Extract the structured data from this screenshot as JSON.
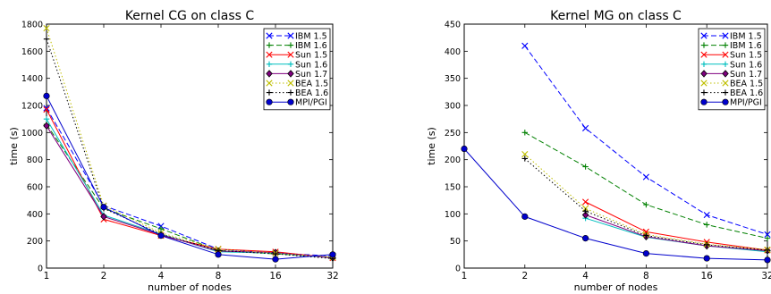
{
  "chart_data": [
    {
      "type": "line",
      "title": "Kernel CG on class C",
      "xlabel": "number of nodes",
      "ylabel": "time (s)",
      "x_scale": "log2",
      "x": [
        1,
        2,
        4,
        8,
        16,
        32
      ],
      "x_tick_labels": [
        "1",
        "2",
        "4",
        "8",
        "16",
        "32"
      ],
      "ylim": [
        0,
        1800
      ],
      "y_ticks": [
        0,
        200,
        400,
        600,
        800,
        1000,
        1200,
        1400,
        1600,
        1800
      ],
      "legend_position": "top-right",
      "series": [
        {
          "name": "IBM 1.5",
          "color": "#0000ff",
          "dash": "dashed",
          "marker": "x",
          "values": [
            1180,
            460,
            310,
            140,
            110,
            90
          ]
        },
        {
          "name": "IBM 1.6",
          "color": "#008000",
          "dash": "dashed",
          "marker": "+",
          "values": [
            1060,
            440,
            290,
            130,
            105,
            80
          ]
        },
        {
          "name": "Sun 1.5",
          "color": "#ff0000",
          "dash": "solid",
          "marker": "x",
          "values": [
            1170,
            360,
            240,
            140,
            120,
            75
          ]
        },
        {
          "name": "Sun 1.6",
          "color": "#00bfbf",
          "dash": "solid",
          "marker": "+",
          "values": [
            1100,
            390,
            250,
            120,
            110,
            75
          ]
        },
        {
          "name": "Sun 1.7",
          "color": "#800080",
          "dash": "solid",
          "marker": "diamond",
          "values": [
            1050,
            380,
            245,
            125,
            115,
            75
          ]
        },
        {
          "name": "BEA 1.5",
          "color": "#bfbf00",
          "dash": "dotted",
          "marker": "x",
          "values": [
            1770,
            460,
            260,
            140,
            110,
            80
          ]
        },
        {
          "name": "BEA 1.6",
          "color": "#000000",
          "dash": "dotted",
          "marker": "+",
          "values": [
            1690,
            440,
            250,
            130,
            105,
            70
          ]
        },
        {
          "name": "MPI/PGI",
          "color": "#0000cc",
          "dash": "solid",
          "marker": "circle",
          "values": [
            1270,
            450,
            240,
            100,
            65,
            100
          ]
        }
      ]
    },
    {
      "type": "line",
      "title": "Kernel MG on class C",
      "xlabel": "number of nodes",
      "ylabel": "time (s)",
      "x_scale": "log2",
      "x": [
        1,
        2,
        4,
        8,
        16,
        32
      ],
      "x_tick_labels": [
        "1",
        "2",
        "4",
        "8",
        "16",
        "32"
      ],
      "ylim": [
        0,
        450
      ],
      "y_ticks": [
        0,
        50,
        100,
        150,
        200,
        250,
        300,
        350,
        400,
        450
      ],
      "legend_position": "top-right",
      "series": [
        {
          "name": "IBM 1.5",
          "color": "#0000ff",
          "dash": "dashed",
          "marker": "x",
          "values": [
            null,
            410,
            258,
            168,
            98,
            62
          ]
        },
        {
          "name": "IBM 1.6",
          "color": "#008000",
          "dash": "dashed",
          "marker": "+",
          "values": [
            null,
            250,
            187,
            117,
            80,
            55
          ]
        },
        {
          "name": "Sun 1.5",
          "color": "#ff0000",
          "dash": "solid",
          "marker": "x",
          "values": [
            null,
            null,
            122,
            67,
            48,
            33
          ]
        },
        {
          "name": "Sun 1.6",
          "color": "#00bfbf",
          "dash": "solid",
          "marker": "+",
          "values": [
            null,
            null,
            92,
            57,
            41,
            30
          ]
        },
        {
          "name": "Sun 1.7",
          "color": "#800080",
          "dash": "solid",
          "marker": "diamond",
          "values": [
            null,
            null,
            98,
            58,
            41,
            32
          ]
        },
        {
          "name": "BEA 1.5",
          "color": "#bfbf00",
          "dash": "dotted",
          "marker": "x",
          "values": [
            null,
            210,
            110,
            62,
            44,
            34
          ]
        },
        {
          "name": "BEA 1.6",
          "color": "#000000",
          "dash": "dotted",
          "marker": "+",
          "values": [
            null,
            202,
            105,
            60,
            43,
            33
          ]
        },
        {
          "name": "MPI/PGI",
          "color": "#0000cc",
          "dash": "solid",
          "marker": "circle",
          "values": [
            220,
            95,
            55,
            27,
            18,
            15
          ]
        }
      ]
    }
  ]
}
